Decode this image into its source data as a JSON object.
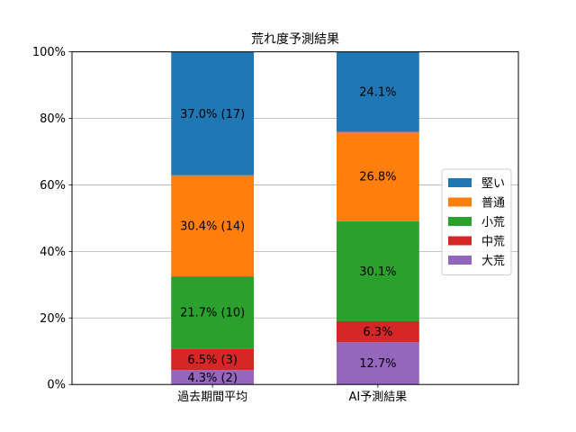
{
  "chart_data": {
    "type": "bar",
    "stacked": true,
    "title": "荒れ度予測結果",
    "xlabel": "",
    "ylabel": "",
    "ylim": [
      0,
      100
    ],
    "y_unit": "%",
    "yticks": [
      "0%",
      "20%",
      "40%",
      "60%",
      "80%",
      "100%"
    ],
    "grid": "y",
    "legend_position": "right",
    "categories": [
      "過去期間平均",
      "AI予測結果"
    ],
    "series": [
      {
        "name": "大荒",
        "color": "#9467bd",
        "values": [
          4.3,
          12.7
        ],
        "labels": [
          "4.3% (2)",
          "12.7%"
        ]
      },
      {
        "name": "中荒",
        "color": "#d62728",
        "values": [
          6.5,
          6.3
        ],
        "labels": [
          "6.5% (3)",
          "6.3%"
        ]
      },
      {
        "name": "小荒",
        "color": "#2ca02c",
        "values": [
          21.7,
          30.1
        ],
        "labels": [
          "21.7% (10)",
          "30.1%"
        ]
      },
      {
        "name": "普通",
        "color": "#ff7f0e",
        "values": [
          30.4,
          26.8
        ],
        "labels": [
          "30.4% (14)",
          "26.8%"
        ]
      },
      {
        "name": "堅い",
        "color": "#1f77b4",
        "values": [
          37.0,
          24.1
        ],
        "labels": [
          "37.0% (17)",
          "24.1%"
        ]
      }
    ],
    "legend_order": [
      "堅い",
      "普通",
      "小荒",
      "中荒",
      "大荒"
    ]
  }
}
